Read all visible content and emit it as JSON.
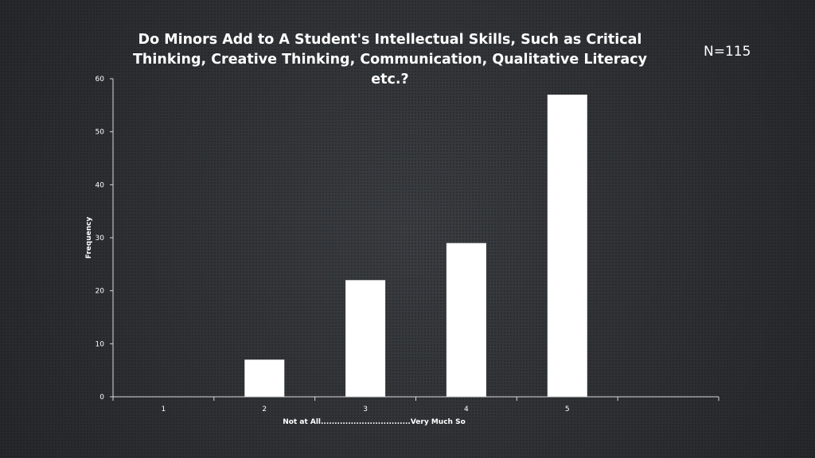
{
  "slide": {
    "title_line1": "Do Minors Add to A Student's Intellectual Skills, Such as Critical",
    "title_line2": "Thinking, Creative Thinking, Communication, Qualitative Literacy etc.?",
    "n_label": "N=115"
  },
  "chart_data": {
    "type": "bar",
    "title": "Do Minors Add to A Student's Intellectual Skills, Such as Critical Thinking, Creative Thinking, Communication, Qualitative Literacy etc.?",
    "categories": [
      "1",
      "2",
      "3",
      "4",
      "5"
    ],
    "values": [
      0,
      7,
      22,
      29,
      57
    ],
    "xlabel": "Not at All.................................Very Much So",
    "ylabel": "Frequency",
    "ylim": [
      0,
      60
    ],
    "yticks": [
      0,
      10,
      20,
      30,
      40,
      50,
      60
    ],
    "slots": 6,
    "grid": false,
    "legend": "none",
    "colors": {
      "bar": "#ffffff",
      "axis": "#d9d9d9",
      "text": "#ffffff"
    }
  }
}
